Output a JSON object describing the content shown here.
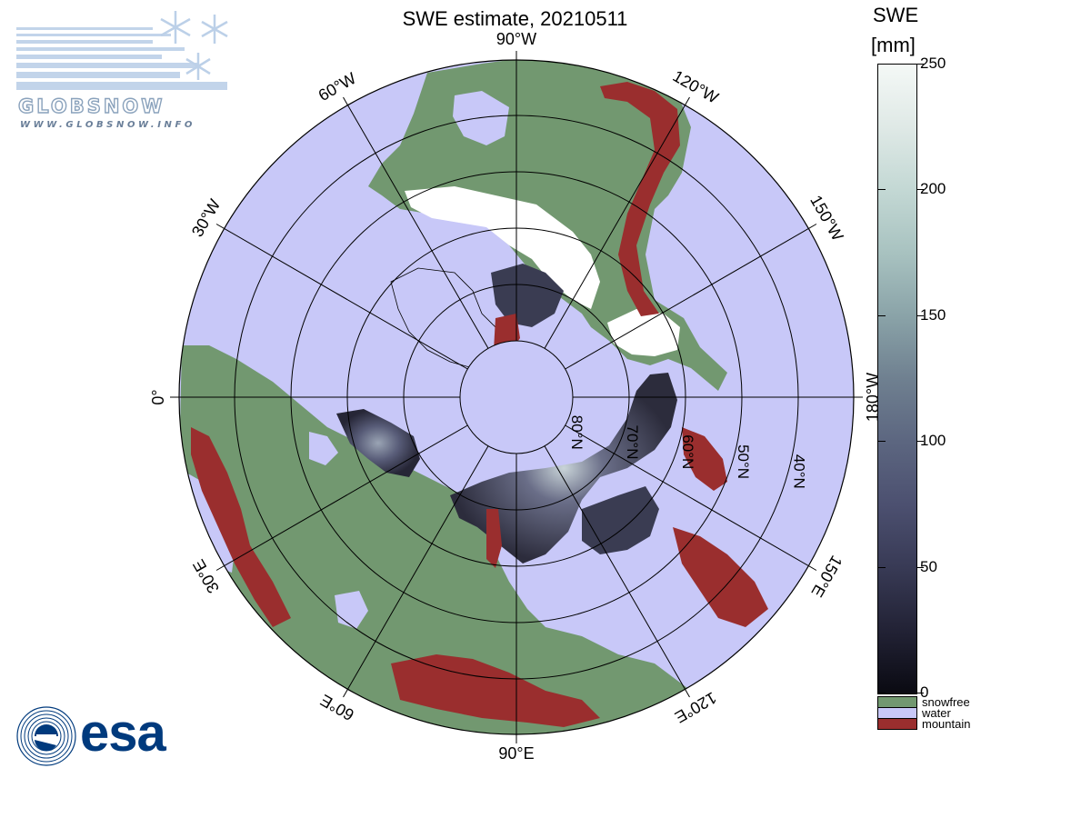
{
  "title": "SWE estimate, 20210511",
  "map": {
    "longitude_labels": [
      {
        "text": "0°",
        "lon": 0
      },
      {
        "text": "30°W",
        "lon": -30
      },
      {
        "text": "60°W",
        "lon": -60
      },
      {
        "text": "90°W",
        "lon": -90
      },
      {
        "text": "120°W",
        "lon": -120
      },
      {
        "text": "150°W",
        "lon": -150
      },
      {
        "text": "180°W",
        "lon": 180
      },
      {
        "text": "150°E",
        "lon": 150
      },
      {
        "text": "120°E",
        "lon": 120
      },
      {
        "text": "90°E",
        "lon": 90
      },
      {
        "text": "60°E",
        "lon": 60
      },
      {
        "text": "30°E",
        "lon": 30
      }
    ],
    "latitude_labels": [
      {
        "text": "80°N",
        "lat": 80
      },
      {
        "text": "70°N",
        "lat": 70
      },
      {
        "text": "60°N",
        "lat": 60
      },
      {
        "text": "50°N",
        "lat": 50
      },
      {
        "text": "40°N",
        "lat": 40
      }
    ],
    "colors": {
      "snowfree": "#729870",
      "water": "#c8c8f8",
      "mountain": "#9a2e2e",
      "snow_high": "#ffffff",
      "snow_mid": "#6a6e88",
      "snow_low": "#2a2a3a",
      "coastline": "#000000"
    }
  },
  "colorbar": {
    "title_line1": "SWE",
    "title_line2": "[mm]",
    "ticks": [
      {
        "label": "250",
        "value": 250
      },
      {
        "label": "200",
        "value": 200
      },
      {
        "label": "150",
        "value": 150
      },
      {
        "label": "100",
        "value": 100
      },
      {
        "label": "50",
        "value": 50
      },
      {
        "label": "0",
        "value": 0
      }
    ],
    "categories": [
      {
        "label": "snowfree",
        "color": "#729870"
      },
      {
        "label": "water",
        "color": "#c8c8f8"
      },
      {
        "label": "mountain",
        "color": "#9a2e2e"
      }
    ]
  },
  "logos": {
    "globsnow_word": "GLOBSNOW",
    "globsnow_url": "WWW.GLOBSNOW.INFO",
    "esa_word": "esa"
  }
}
